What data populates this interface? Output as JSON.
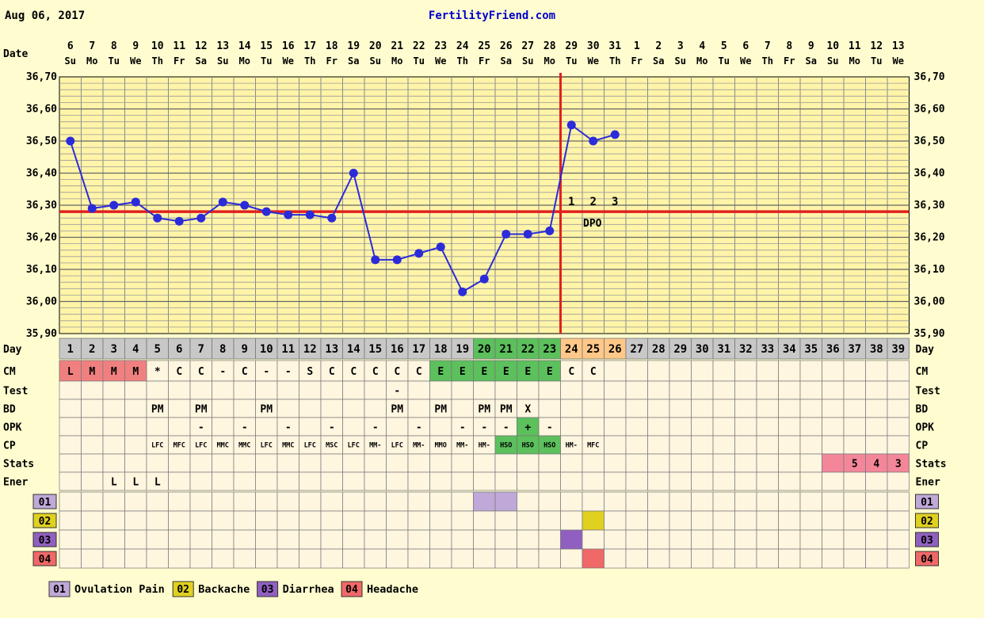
{
  "header": {
    "date": "Aug 06, 2017",
    "site": "FertilityFriend.com"
  },
  "labels": {
    "date": "Date",
    "day": "Day",
    "cm": "CM",
    "test": "Test",
    "bd": "BD",
    "opk": "OPK",
    "cp": "CP",
    "stats": "Stats",
    "ener": "Ener",
    "dpo": "DPO",
    "dpo_numbers": [
      "1",
      "2",
      "3"
    ]
  },
  "columns": {
    "dates": [
      "6",
      "7",
      "8",
      "9",
      "10",
      "11",
      "12",
      "13",
      "14",
      "15",
      "16",
      "17",
      "18",
      "19",
      "20",
      "21",
      "22",
      "23",
      "24",
      "25",
      "26",
      "27",
      "28",
      "29",
      "30",
      "31",
      "1",
      "2",
      "3",
      "4",
      "5",
      "6",
      "7",
      "8",
      "9",
      "10",
      "11",
      "12",
      "13"
    ],
    "weekdays": [
      "Su",
      "Mo",
      "Tu",
      "We",
      "Th",
      "Fr",
      "Sa",
      "Su",
      "Mo",
      "Tu",
      "We",
      "Th",
      "Fr",
      "Sa",
      "Su",
      "Mo",
      "Tu",
      "We",
      "Th",
      "Fr",
      "Sa",
      "Su",
      "Mo",
      "Tu",
      "We",
      "Th",
      "Fr",
      "Sa",
      "Su",
      "Mo",
      "Tu",
      "We",
      "Th",
      "Fr",
      "Sa",
      "Su",
      "Mo",
      "Tu",
      "We"
    ],
    "cycle_days": [
      "1",
      "2",
      "3",
      "4",
      "5",
      "6",
      "7",
      "8",
      "9",
      "10",
      "11",
      "12",
      "13",
      "14",
      "15",
      "16",
      "17",
      "18",
      "19",
      "20",
      "21",
      "22",
      "23",
      "24",
      "25",
      "26",
      "27",
      "28",
      "29",
      "30",
      "31",
      "32",
      "33",
      "34",
      "35",
      "36",
      "37",
      "38",
      "39"
    ]
  },
  "chart_data": {
    "type": "line",
    "x": [
      1,
      2,
      3,
      4,
      5,
      6,
      7,
      8,
      9,
      10,
      11,
      12,
      13,
      14,
      15,
      16,
      17,
      18,
      19,
      20,
      21,
      22,
      23,
      24,
      25,
      26
    ],
    "series": [
      {
        "values": [
          36.5,
          36.29,
          36.3,
          36.31,
          36.26,
          36.25,
          36.26,
          36.31,
          36.3,
          36.28,
          36.27,
          36.27,
          36.26,
          36.4,
          36.13,
          36.13,
          36.15,
          36.17,
          36.03,
          36.07,
          36.21,
          36.21,
          36.22,
          36.55,
          36.5,
          36.52
        ]
      }
    ],
    "y_ticks": [
      "36,70",
      "36,60",
      "36,50",
      "36,40",
      "36,30",
      "36,20",
      "36,10",
      "36,00",
      "35,90"
    ],
    "ylim": [
      35.9,
      36.7
    ],
    "coverline": 36.28,
    "ovulation_day": 23,
    "grid": true,
    "line_color": "#2b2bd9",
    "coverline_color": "#e02020"
  },
  "rows": {
    "cm": [
      {
        "day": 1,
        "v": "L",
        "c": "#f08080"
      },
      {
        "day": 2,
        "v": "M",
        "c": "#f08080"
      },
      {
        "day": 3,
        "v": "M",
        "c": "#f08080"
      },
      {
        "day": 4,
        "v": "M",
        "c": "#f08080"
      },
      {
        "day": 5,
        "v": "*"
      },
      {
        "day": 6,
        "v": "C"
      },
      {
        "day": 7,
        "v": "C"
      },
      {
        "day": 8,
        "v": "-"
      },
      {
        "day": 9,
        "v": "C"
      },
      {
        "day": 10,
        "v": "-"
      },
      {
        "day": 11,
        "v": "-"
      },
      {
        "day": 12,
        "v": "S"
      },
      {
        "day": 13,
        "v": "C"
      },
      {
        "day": 14,
        "v": "C"
      },
      {
        "day": 15,
        "v": "C"
      },
      {
        "day": 16,
        "v": "C"
      },
      {
        "day": 17,
        "v": "C"
      },
      {
        "day": 18,
        "v": "E",
        "c": "#5cc05c"
      },
      {
        "day": 19,
        "v": "E",
        "c": "#5cc05c"
      },
      {
        "day": 20,
        "v": "E",
        "c": "#5cc05c"
      },
      {
        "day": 21,
        "v": "E",
        "c": "#5cc05c"
      },
      {
        "day": 22,
        "v": "E",
        "c": "#5cc05c"
      },
      {
        "day": 23,
        "v": "E",
        "c": "#5cc05c"
      },
      {
        "day": 24,
        "v": "C"
      },
      {
        "day": 25,
        "v": "C"
      }
    ],
    "test": [
      {
        "day": 16,
        "v": "-"
      }
    ],
    "bd": [
      {
        "day": 5,
        "v": "PM"
      },
      {
        "day": 7,
        "v": "PM"
      },
      {
        "day": 10,
        "v": "PM"
      },
      {
        "day": 16,
        "v": "PM"
      },
      {
        "day": 18,
        "v": "PM"
      },
      {
        "day": 20,
        "v": "PM"
      },
      {
        "day": 21,
        "v": "PM"
      },
      {
        "day": 22,
        "v": "X"
      }
    ],
    "opk": [
      {
        "day": 7,
        "v": "-"
      },
      {
        "day": 9,
        "v": "-"
      },
      {
        "day": 11,
        "v": "-"
      },
      {
        "day": 13,
        "v": "-"
      },
      {
        "day": 15,
        "v": "-"
      },
      {
        "day": 17,
        "v": "-"
      },
      {
        "day": 19,
        "v": "-"
      },
      {
        "day": 20,
        "v": "-"
      },
      {
        "day": 21,
        "v": "-"
      },
      {
        "day": 22,
        "v": "+",
        "c": "#5cc05c"
      },
      {
        "day": 23,
        "v": "-"
      }
    ],
    "cp": [
      {
        "day": 5,
        "v": "LFC"
      },
      {
        "day": 6,
        "v": "MFC"
      },
      {
        "day": 7,
        "v": "LFC"
      },
      {
        "day": 8,
        "v": "MMC"
      },
      {
        "day": 9,
        "v": "MMC"
      },
      {
        "day": 10,
        "v": "LFC"
      },
      {
        "day": 11,
        "v": "MMC"
      },
      {
        "day": 12,
        "v": "LFC"
      },
      {
        "day": 13,
        "v": "MSC"
      },
      {
        "day": 14,
        "v": "LFC"
      },
      {
        "day": 15,
        "v": "MM-"
      },
      {
        "day": 16,
        "v": "LFC"
      },
      {
        "day": 17,
        "v": "MM-"
      },
      {
        "day": 18,
        "v": "MMO"
      },
      {
        "day": 19,
        "v": "MM-"
      },
      {
        "day": 20,
        "v": "HM-"
      },
      {
        "day": 21,
        "v": "HSO",
        "c": "#5cc05c"
      },
      {
        "day": 22,
        "v": "HSO",
        "c": "#5cc05c"
      },
      {
        "day": 23,
        "v": "HSO",
        "c": "#5cc05c"
      },
      {
        "day": 24,
        "v": "HM-"
      },
      {
        "day": 25,
        "v": "MFC"
      }
    ],
    "stats": [
      {
        "day": 36,
        "v": "",
        "c": "#f4869a"
      },
      {
        "day": 37,
        "v": "5",
        "c": "#f4869a"
      },
      {
        "day": 38,
        "v": "4",
        "c": "#f4869a"
      },
      {
        "day": 39,
        "v": "3",
        "c": "#f4869a"
      }
    ],
    "ener": [
      {
        "day": 3,
        "v": "L"
      },
      {
        "day": 4,
        "v": "L"
      },
      {
        "day": 5,
        "v": "L"
      }
    ]
  },
  "day_header_colors": {
    "green_days": [
      20,
      21,
      22,
      23
    ],
    "orange_days": [
      24,
      25,
      26
    ],
    "green": "#5cc05c",
    "orange": "#ffc888",
    "gray": "#c8c8c8"
  },
  "symptoms": [
    {
      "code": "01",
      "name": "Ovulation Pain",
      "color": "#c0a8d8",
      "days": [
        20,
        21
      ]
    },
    {
      "code": "02",
      "name": "Backache",
      "color": "#e0d020",
      "days": [
        25
      ]
    },
    {
      "code": "03",
      "name": "Diarrhea",
      "color": "#9060c0",
      "days": [
        24
      ]
    },
    {
      "code": "04",
      "name": "Headache",
      "color": "#f06868",
      "days": [
        25
      ]
    }
  ]
}
